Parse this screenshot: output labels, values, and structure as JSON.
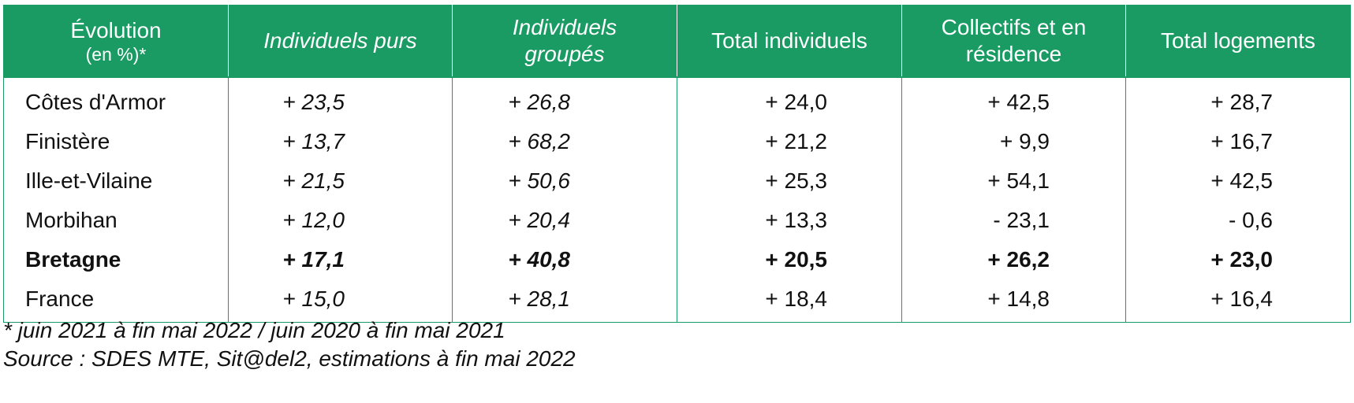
{
  "header": {
    "col0_line1": "Évolution",
    "col0_line2": "(en %)*",
    "col1": "Individuels purs",
    "col2_line1": "Individuels",
    "col2_line2": "groupés",
    "col3": "Total individuels",
    "col4_line1": "Collectifs et en",
    "col4_line2": "résidence",
    "col5": "Total logements"
  },
  "rows": [
    {
      "region": "Côtes d'Armor",
      "individuels_purs": "+ 23,5",
      "individuels_groupes": "+ 26,8",
      "total_individuels": "+ 24,0",
      "collectifs": "+ 42,5",
      "total_logements": "+ 28,7"
    },
    {
      "region": "Finistère",
      "individuels_purs": "+ 13,7",
      "individuels_groupes": "+ 68,2",
      "total_individuels": "+ 21,2",
      "collectifs": "+ 9,9",
      "total_logements": "+ 16,7"
    },
    {
      "region": "Ille-et-Vilaine",
      "individuels_purs": "+ 21,5",
      "individuels_groupes": "+ 50,6",
      "total_individuels": "+ 25,3",
      "collectifs": "+ 54,1",
      "total_logements": "+ 42,5"
    },
    {
      "region": "Morbihan",
      "individuels_purs": "+ 12,0",
      "individuels_groupes": "+ 20,4",
      "total_individuels": "+ 13,3",
      "collectifs": "- 23,1",
      "total_logements": "- 0,6"
    },
    {
      "region": "Bretagne",
      "individuels_purs": "+ 17,1",
      "individuels_groupes": "+ 40,8",
      "total_individuels": "+ 20,5",
      "collectifs": "+ 26,2",
      "total_logements": "+ 23,0"
    },
    {
      "region": "France",
      "individuels_purs": "+ 15,0",
      "individuels_groupes": "+ 28,1",
      "total_individuels": "+ 18,4",
      "collectifs": "+ 14,8",
      "total_logements": "+ 16,4"
    }
  ],
  "notes": {
    "footnote": "* juin 2021 à fin mai 2022 / juin 2020 à fin mai 2021",
    "source": "Source : SDES MTE, Sit@del2, estimations à fin mai 2022"
  },
  "colors": {
    "header_background": "#1a9b63",
    "header_text": "#ffffff",
    "border": "#1a9b63"
  }
}
